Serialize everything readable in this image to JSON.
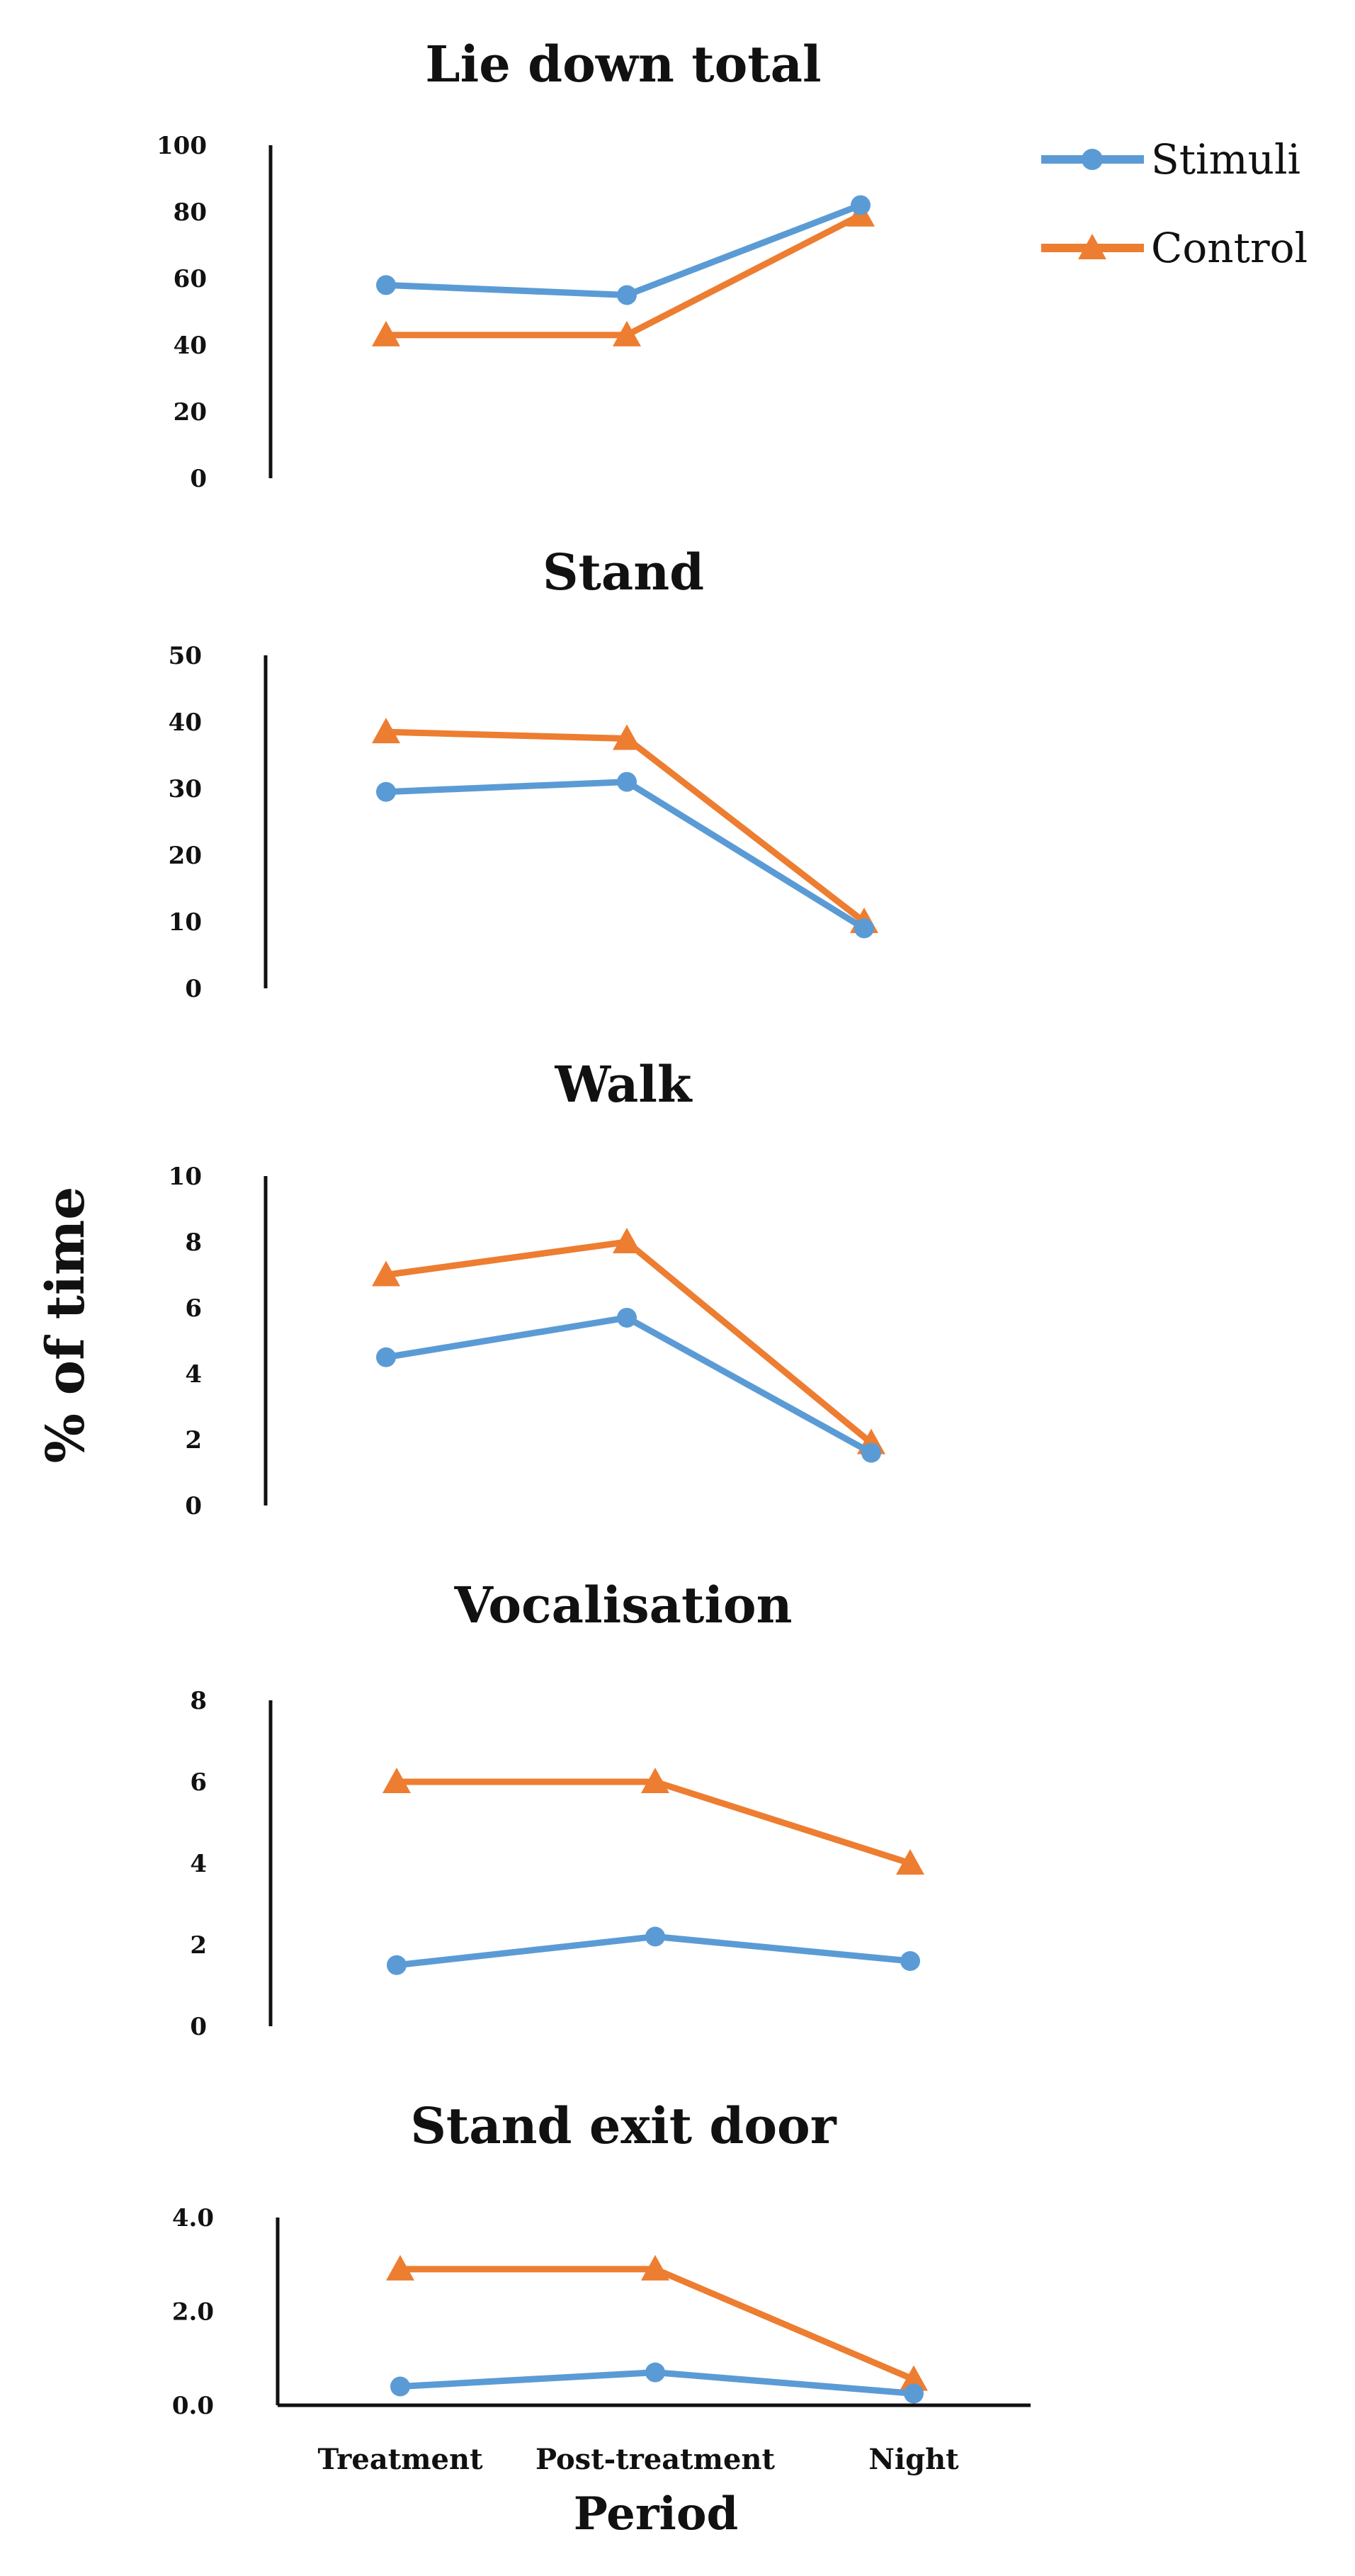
{
  "chart_data": {
    "type": "line",
    "ylabel": "% of time",
    "xlabel": "Period",
    "categories": [
      "Treatment",
      "Post-treatment",
      "Night"
    ],
    "legend": {
      "position": "top-right",
      "entries": [
        {
          "name": "Stimuli",
          "color": "#5B9BD5",
          "marker": "circle"
        },
        {
          "name": "Control",
          "color": "#ED7D31",
          "marker": "triangle"
        }
      ]
    },
    "panels": [
      {
        "title": "Lie down total",
        "ylim": [
          0,
          100
        ],
        "yticks": [
          "0",
          "20",
          "40",
          "60",
          "80",
          "100"
        ],
        "series": [
          {
            "name": "Stimuli",
            "values": [
              58,
              55,
              82
            ]
          },
          {
            "name": "Control",
            "values": [
              43,
              43,
              79
            ]
          }
        ]
      },
      {
        "title": "Stand",
        "ylim": [
          0,
          50
        ],
        "yticks": [
          "0",
          "10",
          "20",
          "30",
          "40",
          "50"
        ],
        "series": [
          {
            "name": "Stimuli",
            "values": [
              29.5,
              31,
              9
            ]
          },
          {
            "name": "Control",
            "values": [
              38.5,
              37.5,
              10
            ]
          }
        ]
      },
      {
        "title": "Walk",
        "ylim": [
          0,
          10
        ],
        "yticks": [
          "0",
          "2",
          "4",
          "6",
          "8",
          "10"
        ],
        "series": [
          {
            "name": "Stimuli",
            "values": [
              4.5,
              5.7,
              1.6
            ]
          },
          {
            "name": "Control",
            "values": [
              7,
              8,
              1.9
            ]
          }
        ]
      },
      {
        "title": "Vocalisation",
        "ylim": [
          0,
          8
        ],
        "yticks": [
          "0",
          "2",
          "4",
          "6",
          "8"
        ],
        "series": [
          {
            "name": "Stimuli",
            "values": [
              1.5,
              2.2,
              1.6
            ]
          },
          {
            "name": "Control",
            "values": [
              6,
              6,
              4
            ]
          }
        ]
      },
      {
        "title": "Stand exit door",
        "ylim": [
          0,
          4
        ],
        "yticks": [
          "0.0",
          "2.0",
          "4.0"
        ],
        "series": [
          {
            "name": "Stimuli",
            "values": [
              0.4,
              0.7,
              0.25
            ]
          },
          {
            "name": "Control",
            "values": [
              2.9,
              2.9,
              0.55
            ]
          }
        ]
      }
    ]
  }
}
